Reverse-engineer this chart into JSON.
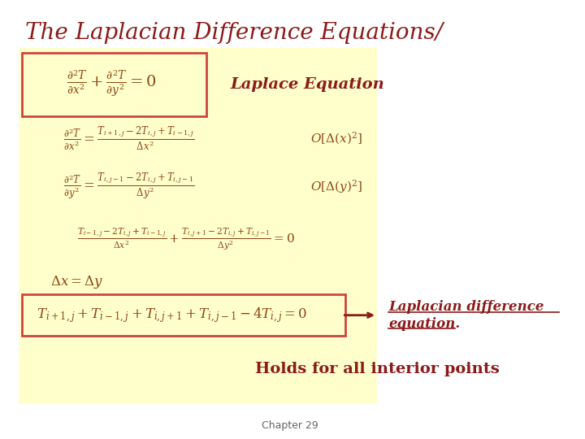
{
  "title": "The Laplacian Difference Equations/",
  "title_color": "#8B1A1A",
  "title_fontsize": 20,
  "bg_color": "#FFFFFF",
  "yellow_bg": "#FFFFCC",
  "box_color": "#CC4444",
  "text_color": "#8B4513",
  "italic_label_color": "#8B1A1A",
  "label_laplace": "Laplace Equation",
  "label_holds": "Holds for all interior points",
  "label_chapter": "Chapter 29"
}
